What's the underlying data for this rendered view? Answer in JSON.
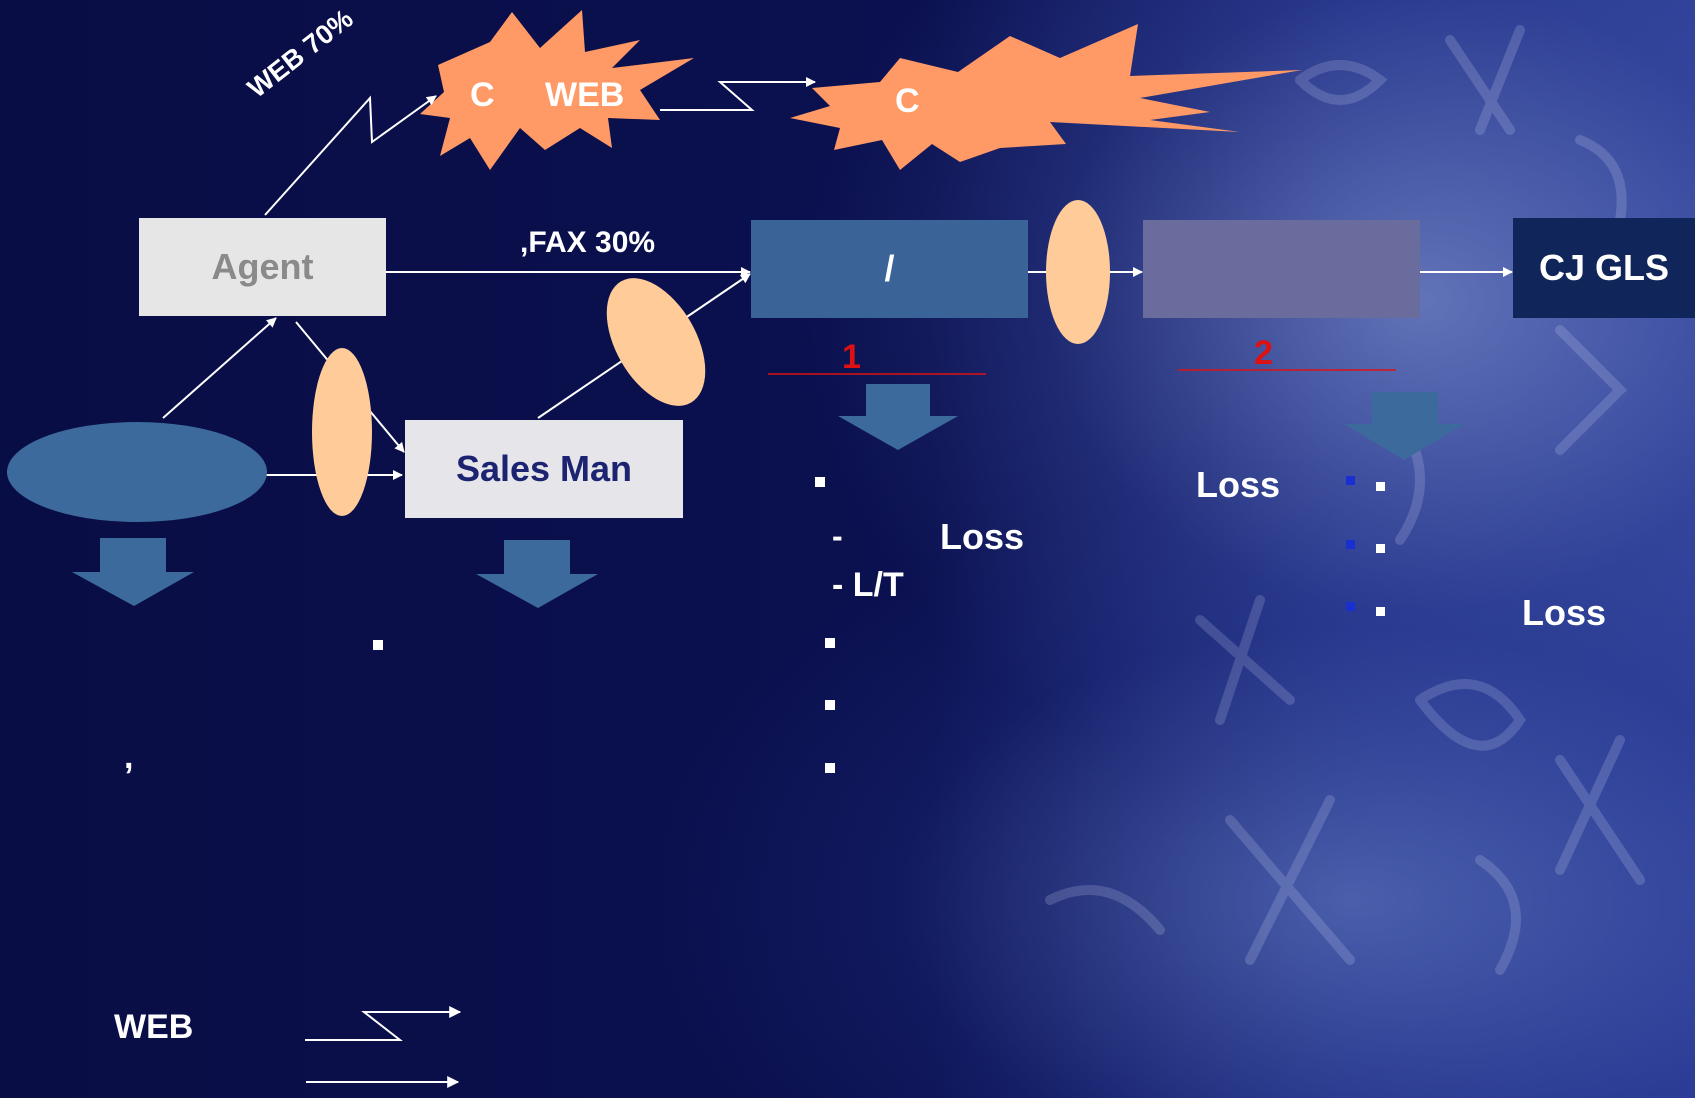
{
  "nodes": {
    "agent": "Agent",
    "sales_man": "Sales Man",
    "process_1": "/",
    "process_2": "",
    "cj_gls": "CJ GLS",
    "left_ellipse": ""
  },
  "bursts": {
    "web_burst": {
      "c": "C",
      "web": "WEB"
    },
    "right_burst": {
      "c": "C"
    }
  },
  "edges": {
    "web_share": "WEB 70%",
    "fax_share": ",FAX 30%"
  },
  "steps": {
    "one": "1",
    "two": "2"
  },
  "notes": {
    "col1": {
      "loss": "Loss",
      "dash1": "-",
      "dash_lt": "- L/T"
    },
    "col2": {
      "loss_left": "Loss",
      "loss_right": "Loss"
    },
    "comma": ",",
    "legend_web": "WEB"
  },
  "colors": {
    "background": "#0b0f4a",
    "agent_box": "#e6e6e6",
    "sales_box": "#e6e6ea",
    "process_1": "#3a6397",
    "process_2": "#6a6c9e",
    "cj_gls": "#10265a",
    "ellipse_blue": "#3d6a9c",
    "peach": "#ffcc99",
    "burst": "#ff9966",
    "step_red": "#dd1111"
  }
}
